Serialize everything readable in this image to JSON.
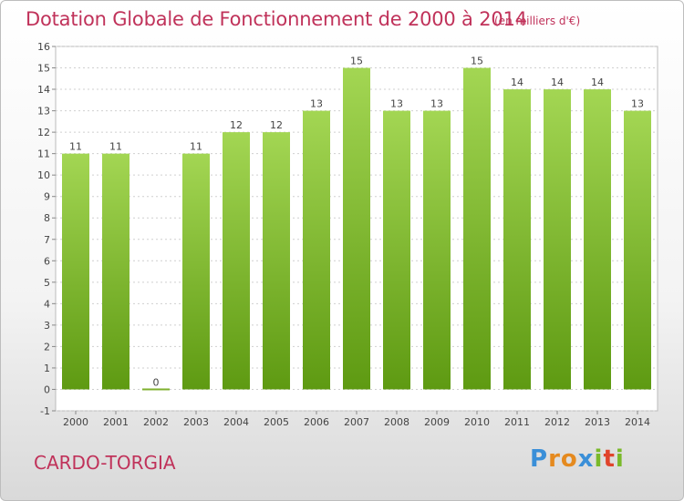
{
  "header": {
    "title": "Dotation Globale de Fonctionnement de 2000 à 2014",
    "unit": "(en milliers d'€)"
  },
  "footer": {
    "commune": "CARDO-TORGIA",
    "logo_letters": [
      "P",
      "r",
      "o",
      "x",
      "i",
      "t",
      "i"
    ],
    "logo_colors": [
      "#3a8fd8",
      "#e58a1f",
      "#e58a1f",
      "#3a8fd8",
      "#7ab92a",
      "#e0442b",
      "#7ab92a"
    ]
  },
  "colors": {
    "bar_light": "#a3d653",
    "bar_dark": "#5e9a12",
    "zero_bar": "#7fb02e",
    "grid": "#cfcfcf",
    "axis_text": "#444444"
  },
  "chart_data": {
    "type": "bar",
    "title": "Dotation Globale de Fonctionnement de 2000 à 2014",
    "xlabel": "",
    "ylabel": "",
    "ylim": [
      -1,
      16
    ],
    "yticks": [
      -1,
      0,
      1,
      2,
      3,
      4,
      5,
      6,
      7,
      8,
      9,
      10,
      11,
      12,
      13,
      14,
      15,
      16
    ],
    "grid": true,
    "categories": [
      "2000",
      "2001",
      "2002",
      "2003",
      "2004",
      "2005",
      "2006",
      "2007",
      "2008",
      "2009",
      "2010",
      "2011",
      "2012",
      "2013",
      "2014"
    ],
    "values": [
      11,
      11,
      0,
      11,
      12,
      12,
      13,
      15,
      13,
      13,
      15,
      14,
      14,
      14,
      13
    ],
    "data_labels": [
      "11",
      "11",
      "0",
      "11",
      "12",
      "12",
      "13",
      "15",
      "13",
      "13",
      "15",
      "14",
      "14",
      "14",
      "13"
    ]
  }
}
